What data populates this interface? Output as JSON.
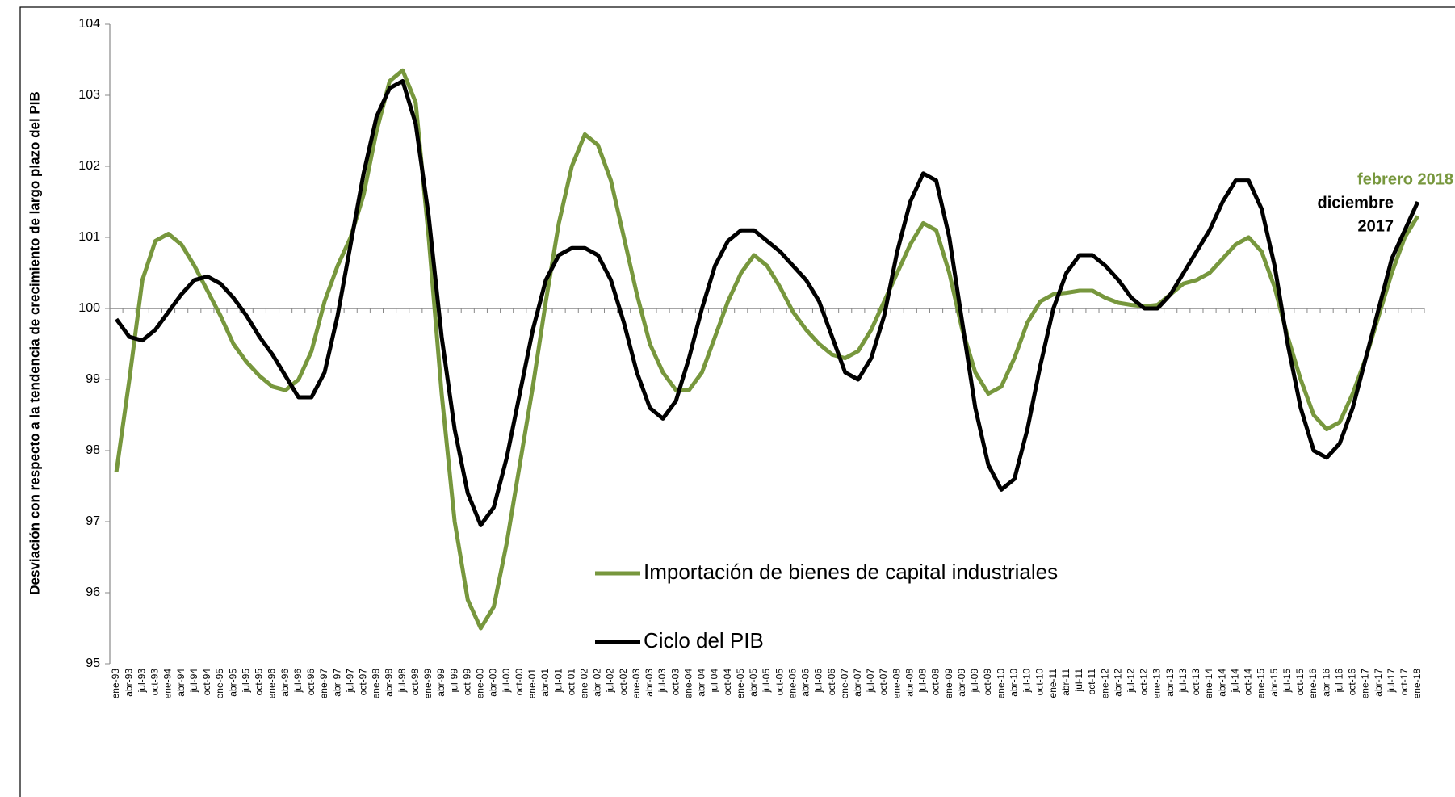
{
  "chart_data": {
    "type": "line",
    "y_label": "Desviación con respecto a la tendencia de crecimiento de largo plazo del PIB",
    "categories": [
      "ene-93",
      "abr-93",
      "jul-93",
      "oct-93",
      "ene-94",
      "abr-94",
      "jul-94",
      "oct-94",
      "ene-95",
      "abr-95",
      "jul-95",
      "oct-95",
      "ene-96",
      "abr-96",
      "jul-96",
      "oct-96",
      "ene-97",
      "abr-97",
      "jul-97",
      "oct-97",
      "ene-98",
      "abr-98",
      "jul-98",
      "oct-98",
      "ene-99",
      "abr-99",
      "jul-99",
      "oct-99",
      "ene-00",
      "abr-00",
      "jul-00",
      "oct-00",
      "ene-01",
      "abr-01",
      "jul-01",
      "oct-01",
      "ene-02",
      "abr-02",
      "jul-02",
      "oct-02",
      "ene-03",
      "abr-03",
      "jul-03",
      "oct-03",
      "ene-04",
      "abr-04",
      "jul-04",
      "oct-04",
      "ene-05",
      "abr-05",
      "jul-05",
      "oct-05",
      "ene-06",
      "abr-06",
      "jul-06",
      "oct-06",
      "ene-07",
      "abr-07",
      "jul-07",
      "oct-07",
      "ene-08",
      "abr-08",
      "jul-08",
      "oct-08",
      "ene-09",
      "abr-09",
      "jul-09",
      "oct-09",
      "ene-10",
      "abr-10",
      "jul-10",
      "oct-10",
      "ene-11",
      "abr-11",
      "jul-11",
      "oct-11",
      "ene-12",
      "abr-12",
      "jul-12",
      "oct-12",
      "ene-13",
      "abr-13",
      "jul-13",
      "oct-13",
      "ene-14",
      "abr-14",
      "jul-14",
      "oct-14",
      "ene-15",
      "abr-15",
      "jul-15",
      "oct-15",
      "ene-16",
      "abr-16",
      "jul-16",
      "oct-16",
      "ene-17",
      "abr-17",
      "jul-17",
      "oct-17",
      "ene-18"
    ],
    "series": [
      {
        "name": "Importación de bienes de capital industriales",
        "color": "#77973d",
        "values": [
          97.7,
          99.0,
          100.4,
          100.95,
          101.05,
          100.9,
          100.6,
          100.25,
          99.9,
          99.5,
          99.25,
          99.05,
          98.9,
          98.85,
          99.0,
          99.4,
          100.1,
          100.6,
          101.0,
          101.6,
          102.5,
          103.2,
          103.35,
          102.9,
          101.0,
          98.8,
          97.0,
          95.9,
          95.5,
          95.8,
          96.7,
          97.8,
          98.9,
          100.1,
          101.2,
          102.0,
          102.45,
          102.3,
          101.8,
          101.0,
          100.2,
          99.5,
          99.1,
          98.85,
          98.85,
          99.1,
          99.6,
          100.1,
          100.5,
          100.75,
          100.6,
          100.3,
          99.95,
          99.7,
          99.5,
          99.35,
          99.3,
          99.4,
          99.7,
          100.1,
          100.5,
          100.9,
          101.2,
          101.1,
          100.5,
          99.7,
          99.1,
          98.8,
          98.9,
          99.3,
          99.8,
          100.1,
          100.2,
          100.22,
          100.25,
          100.25,
          100.15,
          100.08,
          100.05,
          100.03,
          100.05,
          100.2,
          100.35,
          100.4,
          100.5,
          100.7,
          100.9,
          101.0,
          100.8,
          100.3,
          99.6,
          99.0,
          98.5,
          98.3,
          98.4,
          98.8,
          99.3,
          99.9,
          100.5,
          101.0,
          101.3
        ]
      },
      {
        "name": "Ciclo del PIB",
        "color": "#000000",
        "values": [
          99.85,
          99.6,
          99.55,
          99.7,
          99.95,
          100.2,
          100.4,
          100.45,
          100.35,
          100.15,
          99.9,
          99.6,
          99.35,
          99.05,
          98.75,
          98.75,
          99.1,
          99.9,
          100.9,
          101.9,
          102.7,
          103.1,
          103.2,
          102.6,
          101.3,
          99.6,
          98.3,
          97.4,
          96.95,
          97.2,
          97.9,
          98.8,
          99.7,
          100.4,
          100.75,
          100.85,
          100.85,
          100.75,
          100.4,
          99.8,
          99.1,
          98.6,
          98.45,
          98.7,
          99.3,
          100.0,
          100.6,
          100.95,
          101.1,
          101.1,
          100.95,
          100.8,
          100.6,
          100.4,
          100.1,
          99.6,
          99.1,
          99.0,
          99.3,
          99.9,
          100.8,
          101.5,
          101.9,
          101.8,
          101.0,
          99.8,
          98.6,
          97.8,
          97.45,
          97.6,
          98.3,
          99.2,
          100.0,
          100.5,
          100.75,
          100.75,
          100.6,
          100.4,
          100.15,
          100.0,
          100.0,
          100.2,
          100.5,
          100.8,
          101.1,
          101.5,
          101.8,
          101.8,
          101.4,
          100.6,
          99.5,
          98.6,
          98.0,
          97.9,
          98.1,
          98.6,
          99.3,
          100.0,
          100.7,
          101.1,
          101.5
        ]
      }
    ],
    "ylim": [
      95,
      104
    ],
    "yticks": [
      95,
      96,
      97,
      98,
      99,
      100,
      101,
      102,
      103,
      104
    ],
    "x_axis_at": 100,
    "annotations": [
      {
        "text": [
          "febrero 2018"
        ],
        "color": "#77973d"
      },
      {
        "text": [
          "diciembre",
          "2017"
        ],
        "color": "#000000"
      }
    ]
  }
}
